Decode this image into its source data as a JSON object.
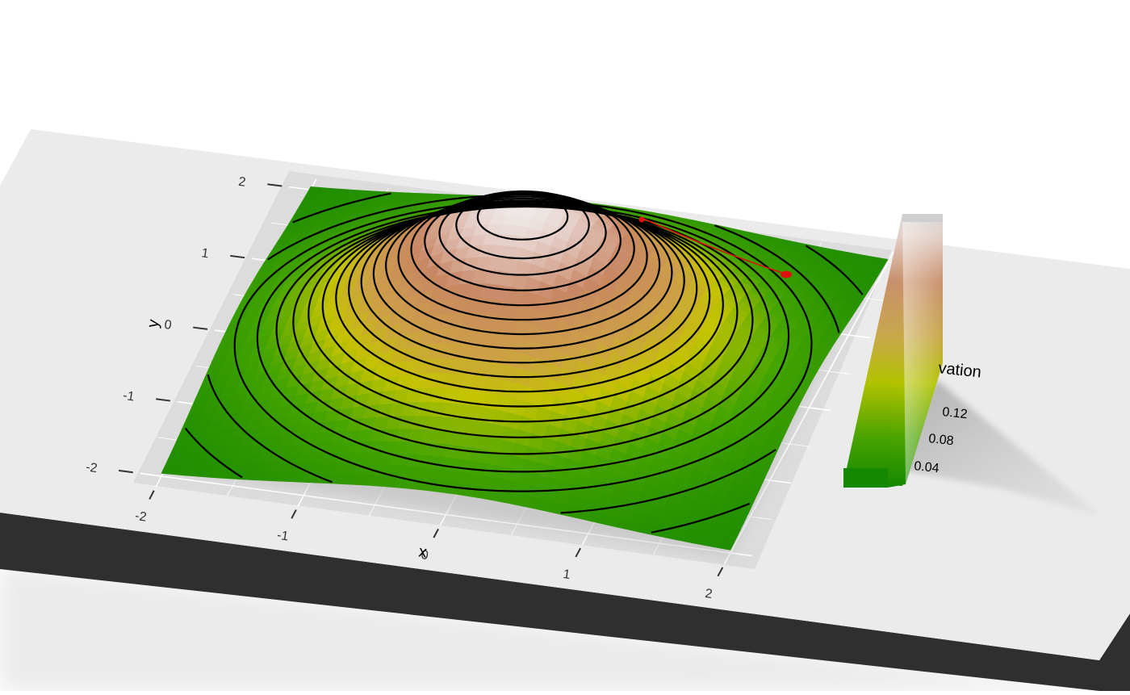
{
  "chart_data": {
    "type": "heatmap",
    "rendering": "3d-surface",
    "x": [
      -2,
      2
    ],
    "y": [
      -2,
      2
    ],
    "xlabel": "x",
    "ylabel": "y",
    "xlim": [
      -2,
      2
    ],
    "ylim": [
      -2,
      2
    ],
    "x_ticks": [
      "-2",
      "-1",
      "0",
      "1",
      "2"
    ],
    "y_ticks": [
      "-2",
      "-1",
      "0",
      "1",
      "2"
    ],
    "surface": "bivariate normal density, centered at (0, 0), peak about 0.159",
    "z_peak": 0.159,
    "contour_lines": true,
    "contour_color": "#000000",
    "grid": true,
    "legend": {
      "title": "elevation",
      "title_visible": "vation",
      "breaks": [
        "0.04",
        "0.08",
        "0.12"
      ],
      "placement": "right"
    },
    "colors": {
      "low": "#1c8c00",
      "mid": "#c8c400",
      "high": "#c8855a",
      "peak": "#e8e2e0",
      "path": "#e01010",
      "panel": "#ebebeb",
      "base": "#2f2f2f"
    }
  }
}
